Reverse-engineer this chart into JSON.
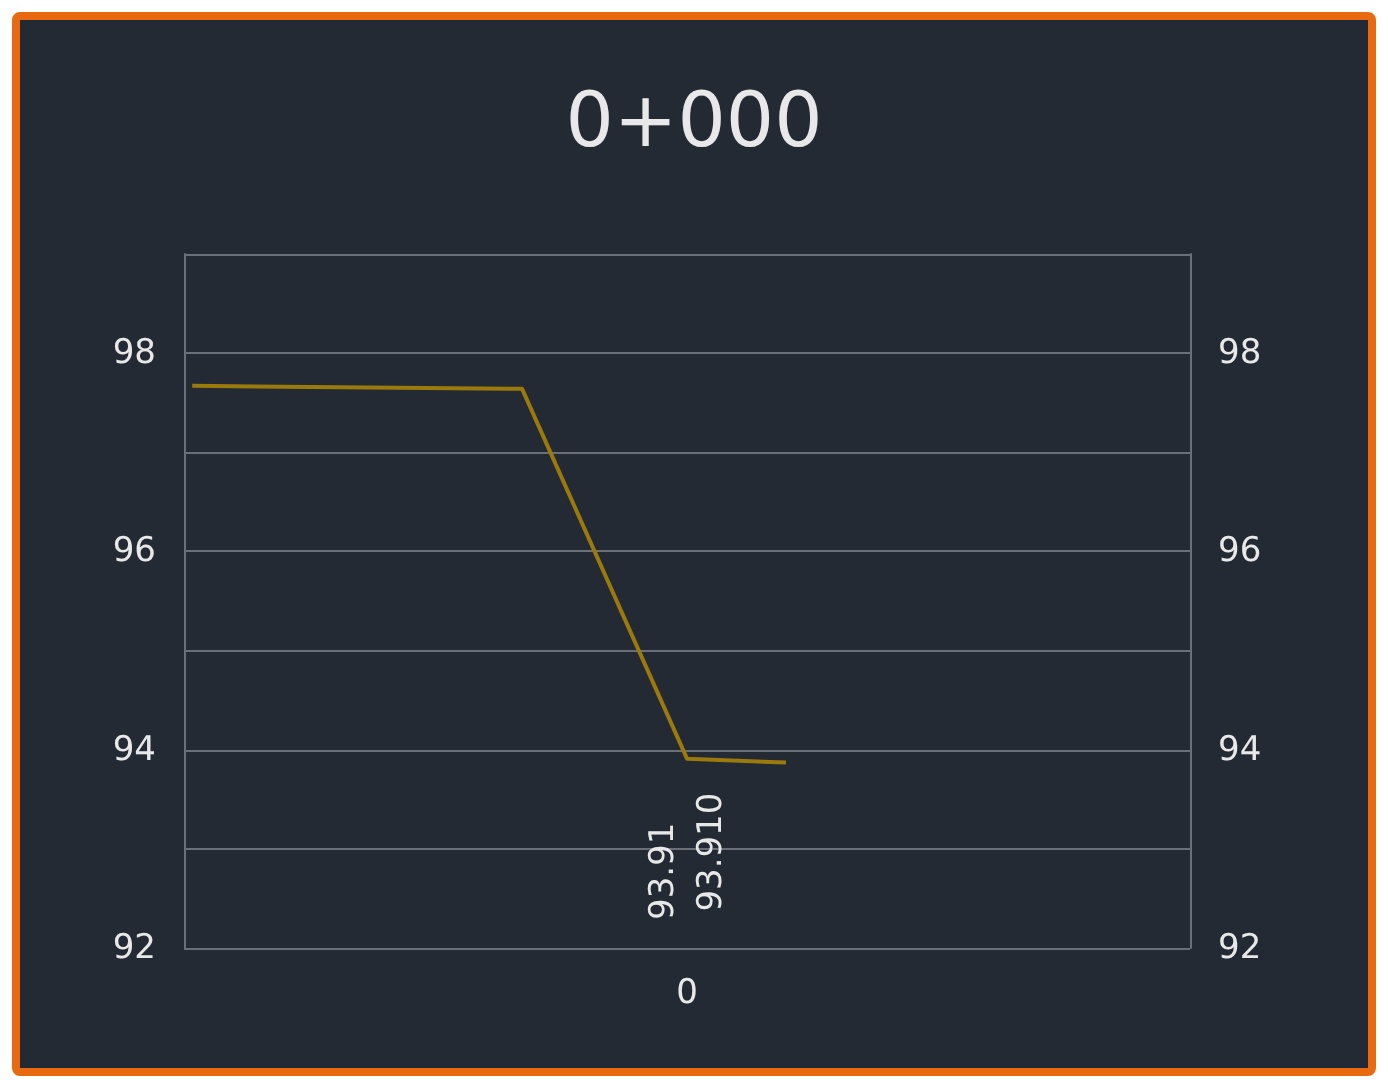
{
  "chart_data": {
    "type": "line",
    "title": "0+000",
    "categories": [
      null,
      null,
      null,
      null,
      null,
      null,
      null,
      null,
      null,
      null,
      null,
      null,
      null,
      null,
      null,
      null,
      null,
      null,
      null,
      null,
      null,
      null,
      null,
      null,
      null,
      null,
      null,
      null,
      null,
      null,
      "0",
      null,
      null,
      null,
      null,
      null,
      null,
      null,
      null,
      null,
      null,
      null,
      null,
      null,
      null,
      null,
      null,
      null,
      null,
      null,
      null,
      null,
      null,
      null,
      null,
      null,
      null,
      null,
      null,
      null,
      null
    ],
    "series": [
      {
        "color": "#9a7a0c",
        "values": [
          97.67,
          null,
          null,
          null,
          null,
          null,
          null,
          null,
          null,
          null,
          null,
          null,
          null,
          null,
          null,
          null,
          null,
          null,
          null,
          null,
          97.64,
          null,
          null,
          null,
          null,
          null,
          null,
          null,
          null,
          null,
          93.91,
          null,
          null,
          null,
          null,
          null,
          93.87,
          null,
          null,
          null,
          null,
          null,
          null,
          null,
          null,
          null,
          null,
          null,
          null,
          null,
          null,
          null,
          null,
          null,
          null,
          null,
          null,
          null,
          null,
          null,
          null
        ]
      }
    ],
    "ylim": [
      92,
      99
    ],
    "yticks": [
      92,
      {
        "value": 93,
        "label": null
      },
      94,
      {
        "value": 95,
        "label": null
      },
      96,
      {
        "value": 97,
        "label": null
      },
      98,
      {
        "value": 99,
        "label": null
      }
    ],
    "y2lim": [
      92,
      99
    ],
    "y2ticks": [
      92,
      {
        "value": 93,
        "label": null
      },
      94,
      {
        "value": 95,
        "label": null
      },
      96,
      {
        "value": 97,
        "label": null
      },
      98,
      {
        "value": 99,
        "label": null
      }
    ],
    "annotations": [
      {
        "text": "93.91",
        "x": "0",
        "y": 93.91
      },
      {
        "text": "93.910",
        "x": "0",
        "y": 93.91
      }
    ],
    "grid": true,
    "marker": "none",
    "line_style": "solid"
  }
}
